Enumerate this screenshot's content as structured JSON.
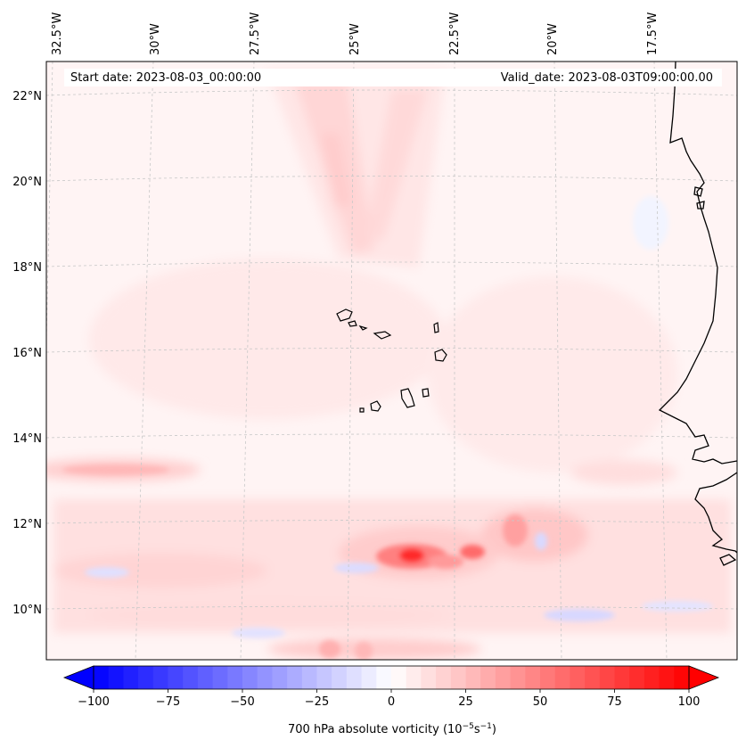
{
  "map": {
    "start_date": "Start date: 2023-08-03_00:00:00",
    "valid_date": "Valid_date: 2023-08-03T09:00:00.00",
    "lon_labels": [
      "32.5°W",
      "30°W",
      "27.5°W",
      "25°W",
      "22.5°W",
      "20°W",
      "17.5°W"
    ],
    "lat_labels": [
      "22°N",
      "20°N",
      "18°N",
      "16°N",
      "14°N",
      "12°N",
      "10°N"
    ],
    "extent": {
      "lon_min": -32.7,
      "lon_max": -15.9,
      "lat_min": 8.9,
      "lat_max": 22.8
    }
  },
  "colorbar": {
    "label_prefix": "700 hPa absolute vorticity (10",
    "label_exp1": "−5",
    "label_mid": "s",
    "label_exp2": "−1",
    "label_suffix": ")",
    "ticks": [
      "−100",
      "−75",
      "−50",
      "−25",
      "0",
      "25",
      "50",
      "75",
      "100"
    ],
    "vmin": -100,
    "vmax": 100,
    "levels": 41,
    "min_color": "#0000ff",
    "mid_color": "#ffffff",
    "max_color": "#ff0000"
  },
  "colors": {
    "background_field": "#fff4f4",
    "coast": "#000000",
    "grid": "#c8c8c8"
  }
}
